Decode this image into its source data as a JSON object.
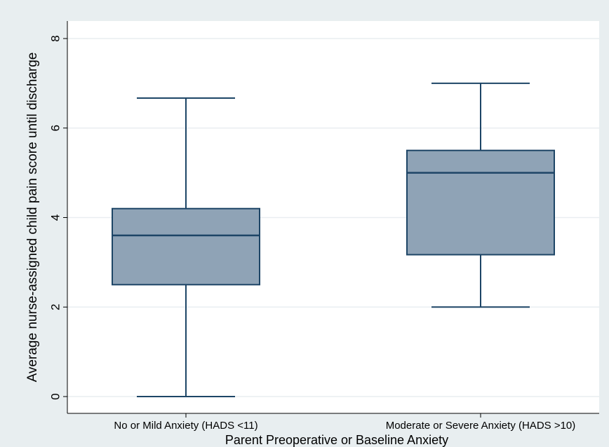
{
  "chart_data": {
    "type": "box",
    "title": "",
    "xlabel": "Parent Preoperative or Baseline Anxiety",
    "ylabel": "Average nurse-assigned child pain score until discharge",
    "ylim": [
      0,
      8
    ],
    "yticks": [
      0,
      2,
      4,
      6,
      8
    ],
    "grid": "horizontal",
    "categories": [
      "No or Mild Anxiety (HADS <11)",
      "Moderate or Severe Anxiety (HADS >10)"
    ],
    "boxes": [
      {
        "category": "No or Mild Anxiety (HADS <11)",
        "whisker_low": 0,
        "q1": 2.5,
        "median": 3.6,
        "q3": 4.2,
        "whisker_high": 6.67
      },
      {
        "category": "Moderate or Severe Anxiety (HADS >10)",
        "whisker_low": 2,
        "q1": 3.17,
        "median": 5,
        "q3": 5.5,
        "whisker_high": 7
      }
    ],
    "colors": {
      "box_fill": "#8fa3b6",
      "box_stroke": "#1d4566",
      "plot_bg": "#ffffff",
      "outer_bg": "#e8eef0",
      "grid": "#e9eef1"
    }
  }
}
